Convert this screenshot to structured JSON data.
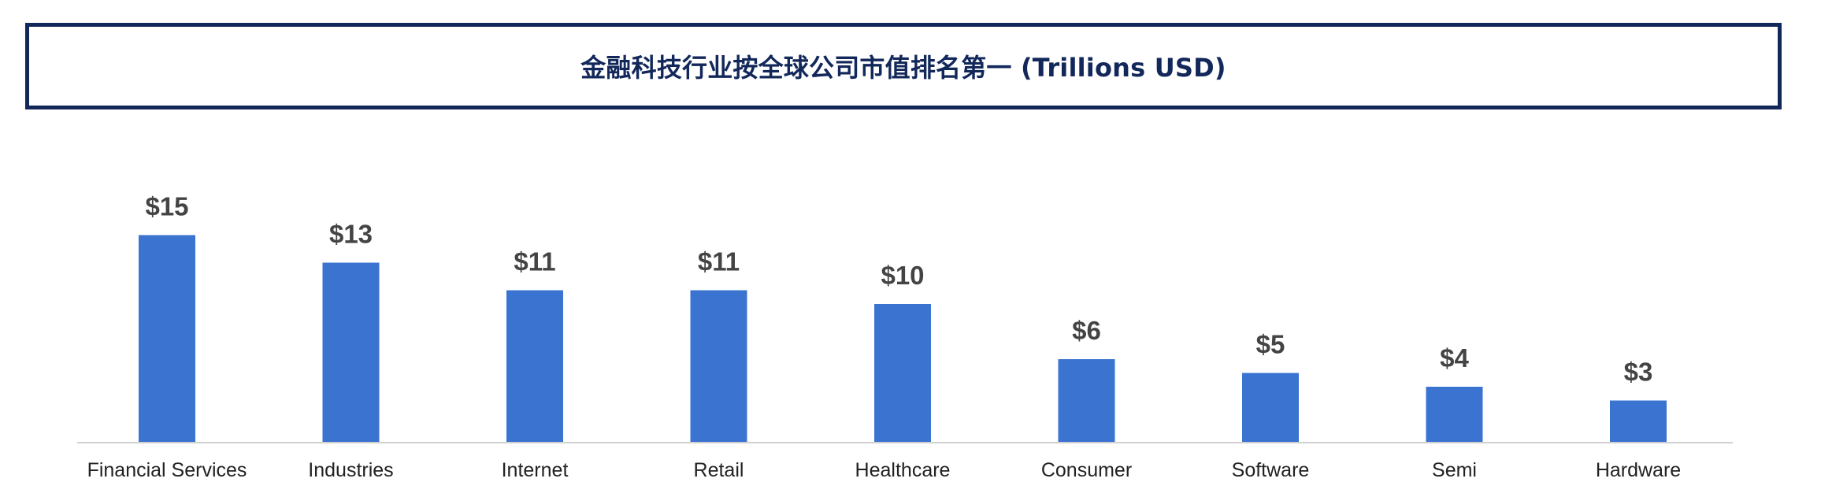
{
  "chart_data": {
    "type": "bar",
    "title": "金融科技行业按全球公司市值排名第一 (Trillions USD)",
    "categories": [
      "Financial Services",
      "Industries",
      "Internet",
      "Retail",
      "Healthcare",
      "Consumer",
      "Software",
      "Semi",
      "Hardware"
    ],
    "values": [
      15,
      13,
      11,
      11,
      10,
      6,
      5,
      4,
      3
    ],
    "data_labels": [
      "$15",
      "$13",
      "$11",
      "$11",
      "$10",
      "$6",
      "$5",
      "$4",
      "$3"
    ],
    "xlabel": "",
    "ylabel": "",
    "ylim": [
      0,
      15
    ],
    "grid": false,
    "legend": "none",
    "colors": {
      "bar": "#3b73d0",
      "title": "#12285a",
      "title_border": "#12285a",
      "axis": "#d0d0d0",
      "value_label": "#444444",
      "category_label": "#222222"
    }
  }
}
